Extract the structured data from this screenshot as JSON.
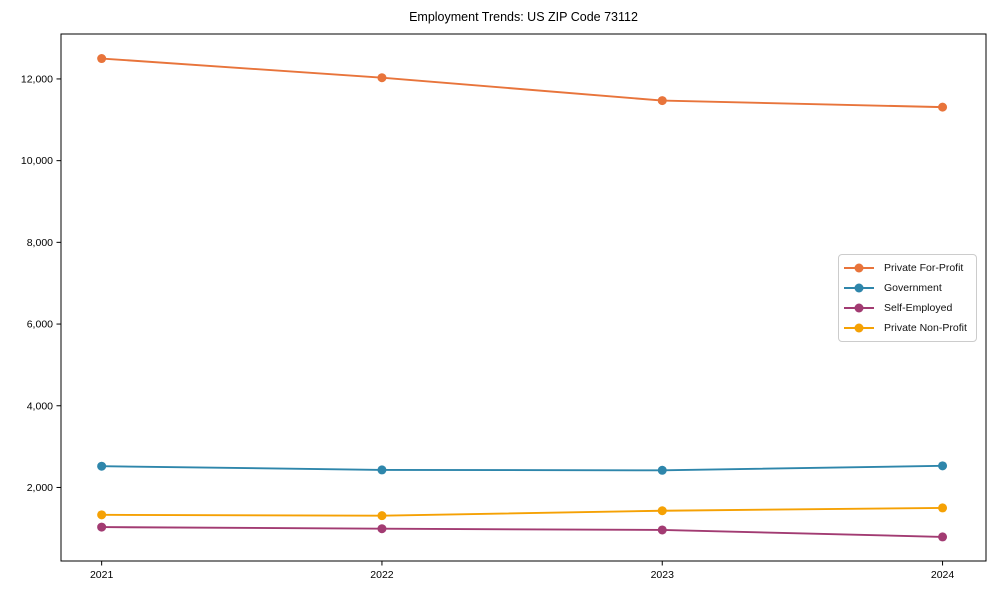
{
  "chart_data": {
    "type": "line",
    "title": "Employment Trends: US ZIP Code 73112",
    "x": [
      2021,
      2022,
      2023,
      2024
    ],
    "x_tick_labels": [
      "2021",
      "2022",
      "2023",
      "2024"
    ],
    "series": [
      {
        "name": "Private For-Profit",
        "color": "#E8743B",
        "values": [
          12500,
          12030,
          11470,
          11310
        ]
      },
      {
        "name": "Government",
        "color": "#2E86AB",
        "values": [
          2520,
          2430,
          2420,
          2530
        ]
      },
      {
        "name": "Self-Employed",
        "color": "#A23B72",
        "values": [
          1030,
          990,
          960,
          790
        ]
      },
      {
        "name": "Private Non-Profit",
        "color": "#F5A104",
        "values": [
          1330,
          1310,
          1430,
          1500
        ]
      }
    ],
    "xlabel": "",
    "ylabel": "",
    "xlim": [
      2020.855,
      2024.155
    ],
    "ylim": [
      200,
      13100
    ],
    "yticks": [
      2000,
      4000,
      6000,
      8000,
      10000,
      12000
    ],
    "ytick_labels": [
      "2,000",
      "4,000",
      "6,000",
      "8,000",
      "10,000",
      "12,000"
    ],
    "grid": false,
    "legend_position": "center-right",
    "marker": "circle",
    "marker_radius": 4.5,
    "line_width": 1.9,
    "spine_color": "#000000",
    "background_color": "#ffffff"
  }
}
